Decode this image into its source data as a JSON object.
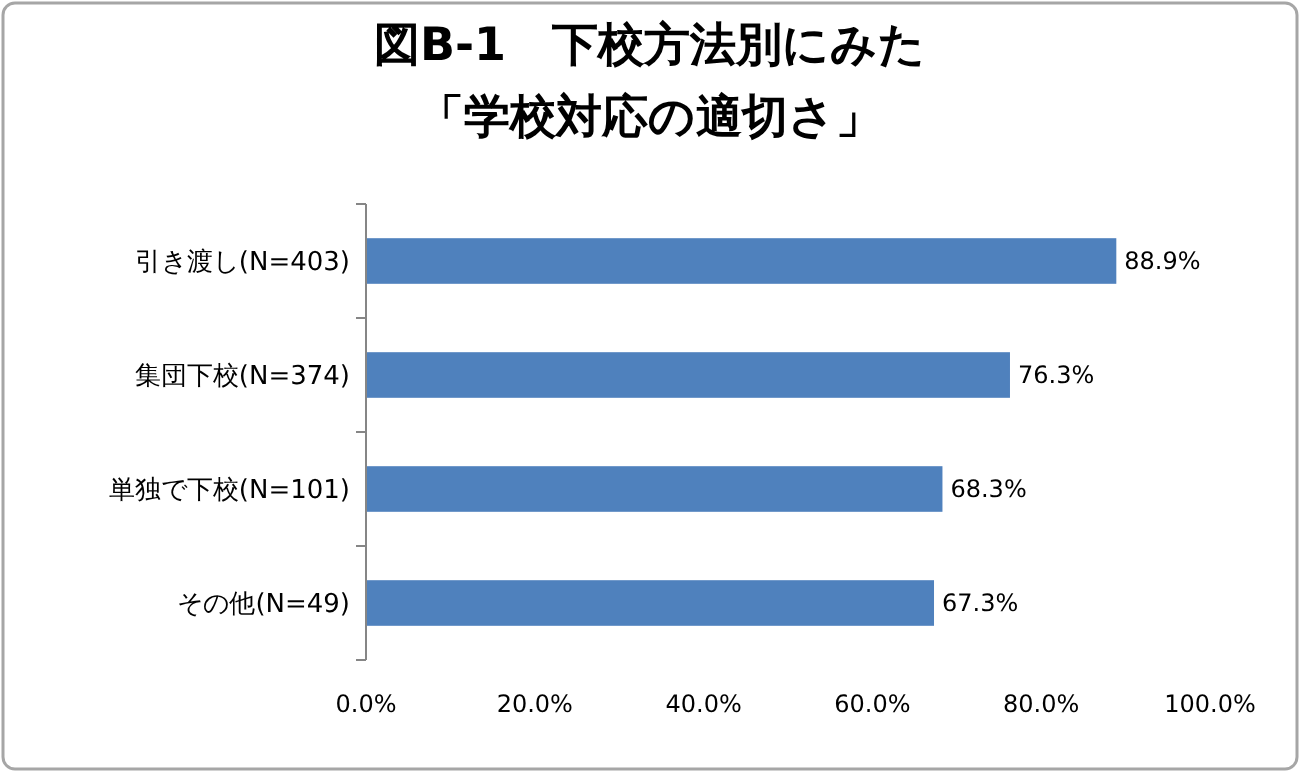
{
  "chart_data": {
    "type": "bar",
    "orientation": "horizontal",
    "title": "図B-1　下校方法別にみた",
    "subtitle": "「学校対応の適切さ」",
    "categories": [
      "引き渡し(N=403)",
      "集団下校(N=374)",
      "単独で下校(N=101)",
      "その他(N=49)"
    ],
    "values": [
      88.9,
      76.3,
      68.3,
      67.3
    ],
    "value_labels": [
      "88.9%",
      "76.3%",
      "68.3%",
      "67.3%"
    ],
    "color": "#4f81bd",
    "xlim": [
      0,
      100
    ],
    "xticks": [
      {
        "value": 0,
        "label": "0.0%"
      },
      {
        "value": 20,
        "label": "20.0%"
      },
      {
        "value": 40,
        "label": "40.0%"
      },
      {
        "value": 60,
        "label": "60.0%"
      },
      {
        "value": 80,
        "label": "80.0%"
      },
      {
        "value": 100,
        "label": "100.0%"
      }
    ],
    "grid": false
  }
}
